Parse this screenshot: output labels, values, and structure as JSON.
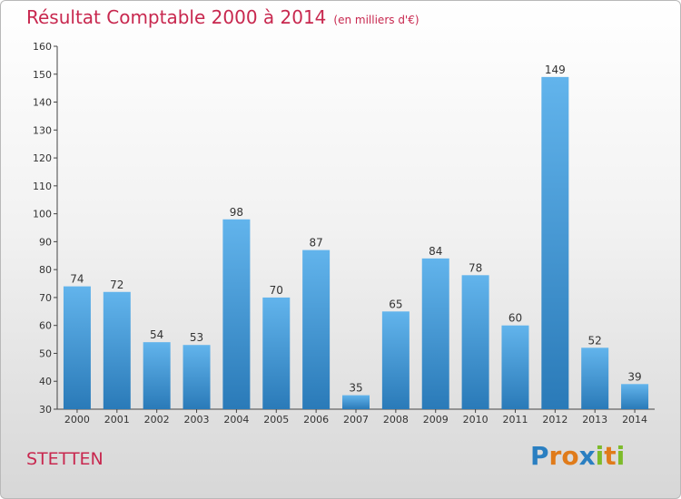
{
  "title": "Résultat Comptable 2000 à 2014",
  "unit_note": "(en milliers d'€)",
  "city": "STETTEN",
  "logo": {
    "letters": [
      "P",
      "r",
      "o",
      "x",
      "i",
      "t",
      "i"
    ],
    "colors": [
      "#2a7fc1",
      "#e07b1a",
      "#e07b1a",
      "#2a7fc1",
      "#7dbb2a",
      "#e07b1a",
      "#7dbb2a"
    ]
  },
  "colors": {
    "bar_light": "#62b4ec",
    "bar_dark": "#2a7ab8",
    "title": "#c8284f"
  },
  "chart_data": {
    "type": "bar",
    "categories": [
      "2000",
      "2001",
      "2002",
      "2003",
      "2004",
      "2005",
      "2006",
      "2007",
      "2008",
      "2009",
      "2010",
      "2011",
      "2012",
      "2013",
      "2014"
    ],
    "values": [
      74,
      72,
      54,
      53,
      98,
      70,
      87,
      35,
      65,
      84,
      78,
      60,
      149,
      52,
      39
    ],
    "title": "Résultat Comptable 2000 à 2014",
    "xlabel": "",
    "ylabel": "",
    "ylim": [
      30,
      160
    ],
    "yticks": [
      30,
      40,
      50,
      60,
      70,
      80,
      90,
      100,
      110,
      120,
      130,
      140,
      150,
      160
    ],
    "grid": false,
    "legend": "none"
  }
}
